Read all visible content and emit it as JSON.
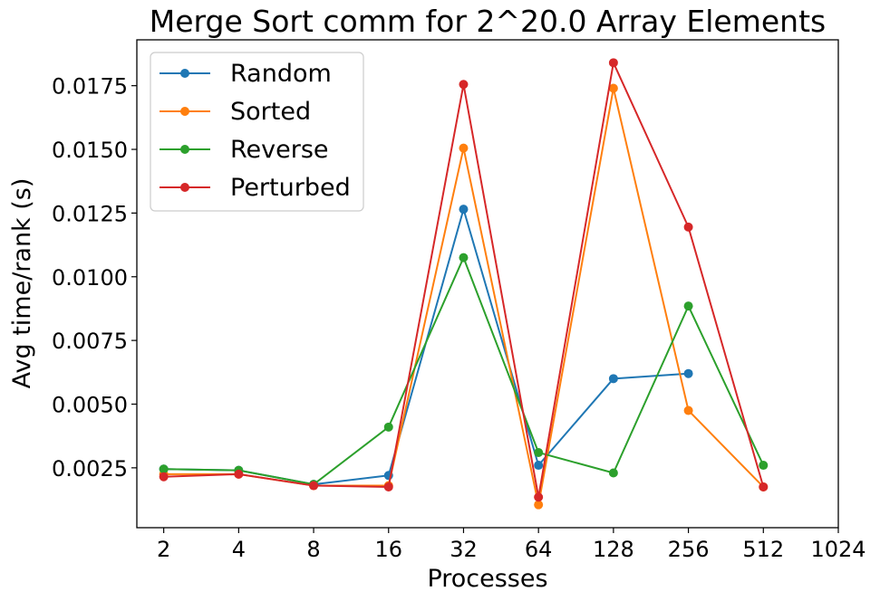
{
  "chart_data": {
    "type": "line",
    "title": "Merge Sort comm for 2^20.0 Array Elements",
    "xlabel": "Processes",
    "ylabel": "Avg time/rank (s)",
    "x_scale": "log2",
    "x_ticks": [
      2,
      4,
      8,
      16,
      32,
      64,
      128,
      256,
      512,
      1024
    ],
    "x_tick_labels": [
      "2",
      "4",
      "8",
      "16",
      "32",
      "64",
      "128",
      "256",
      "512",
      "1024"
    ],
    "xlim": [
      1.56,
      1024
    ],
    "y_ticks": [
      0.0025,
      0.005,
      0.0075,
      0.01,
      0.0125,
      0.015,
      0.0175
    ],
    "y_tick_labels": [
      "0.0025",
      "0.0050",
      "0.0075",
      "0.0100",
      "0.0125",
      "0.0150",
      "0.0175"
    ],
    "ylim": [
      0.00015,
      0.0193
    ],
    "grid": false,
    "legend_position": "upper-left",
    "series": [
      {
        "name": "Random",
        "color": "#1f77b4",
        "x": [
          2,
          4,
          8,
          16,
          32,
          64,
          128,
          256
        ],
        "values": [
          0.00245,
          0.0024,
          0.00185,
          0.0022,
          0.01265,
          0.0026,
          0.006,
          0.0062
        ]
      },
      {
        "name": "Sorted",
        "color": "#ff7f0e",
        "x": [
          2,
          4,
          8,
          16,
          32,
          64,
          128,
          256,
          512
        ],
        "values": [
          0.00225,
          0.00225,
          0.0018,
          0.0018,
          0.01505,
          0.00105,
          0.0174,
          0.00475,
          0.00175
        ]
      },
      {
        "name": "Reverse",
        "color": "#2ca02c",
        "x": [
          2,
          4,
          8,
          16,
          32,
          64,
          128,
          256,
          512
        ],
        "values": [
          0.00245,
          0.0024,
          0.00185,
          0.0041,
          0.01075,
          0.0031,
          0.0023,
          0.00885,
          0.0026
        ]
      },
      {
        "name": "Perturbed",
        "color": "#d62728",
        "x": [
          2,
          4,
          8,
          16,
          32,
          64,
          128,
          256,
          512
        ],
        "values": [
          0.00215,
          0.00225,
          0.0018,
          0.00175,
          0.01755,
          0.00135,
          0.0184,
          0.01195,
          0.00175
        ]
      }
    ]
  }
}
